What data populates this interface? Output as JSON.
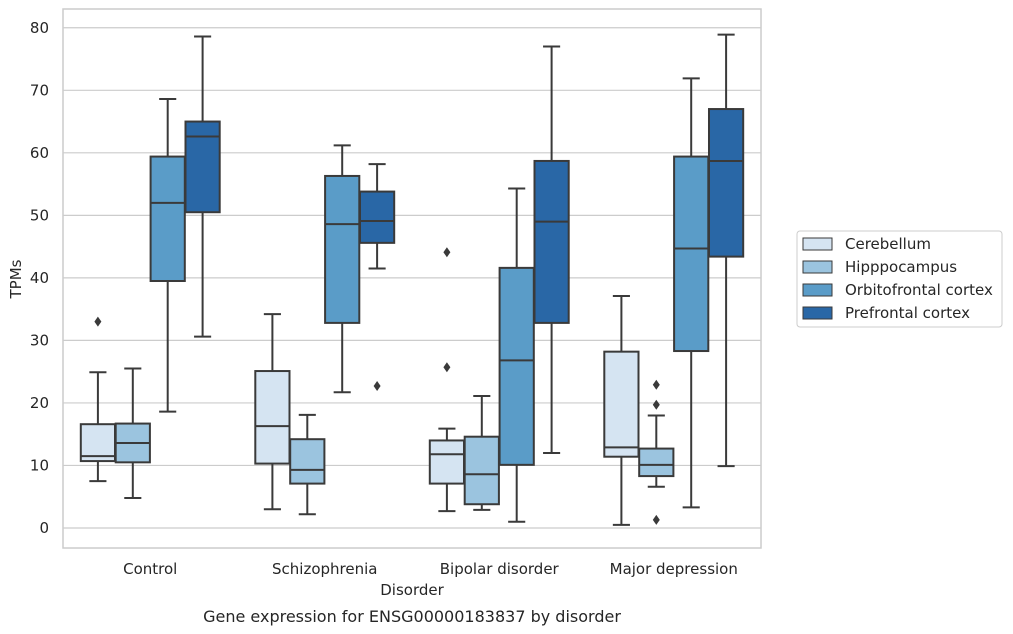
{
  "chart_data": {
    "type": "box",
    "caption": "Gene expression for ENSG00000183837 by disorder",
    "xlabel": "Disorder",
    "ylabel": "TPMs",
    "ylim": [
      -3.2,
      83
    ],
    "yticks": [
      0,
      10,
      20,
      30,
      40,
      50,
      60,
      70,
      80
    ],
    "grid": "horizontal",
    "legend_position": "right",
    "categories": [
      "Control",
      "Schizophrenia",
      "Bipolar disorder",
      "Major depression"
    ],
    "series": [
      {
        "name": "Cerebellum",
        "color": "#d5e4f2",
        "boxes": [
          {
            "whislo": 7.5,
            "q1": 10.7,
            "med": 11.5,
            "q3": 16.6,
            "whishi": 24.9,
            "fliers": [
              33.0
            ]
          },
          {
            "whislo": 3.0,
            "q1": 10.3,
            "med": 16.3,
            "q3": 25.1,
            "whishi": 34.2,
            "fliers": []
          },
          {
            "whislo": 2.7,
            "q1": 7.1,
            "med": 11.8,
            "q3": 14.0,
            "whishi": 15.9,
            "fliers": [
              25.7,
              44.1
            ]
          },
          {
            "whislo": 0.5,
            "q1": 11.4,
            "med": 12.9,
            "q3": 28.2,
            "whishi": 37.1,
            "fliers": []
          }
        ]
      },
      {
        "name": "Hipppocampus",
        "color": "#9bc4df",
        "boxes": [
          {
            "whislo": 4.8,
            "q1": 10.5,
            "med": 13.6,
            "q3": 16.7,
            "whishi": 25.5,
            "fliers": []
          },
          {
            "whislo": 2.2,
            "q1": 7.1,
            "med": 9.3,
            "q3": 14.2,
            "whishi": 18.1,
            "fliers": []
          },
          {
            "whislo": 2.9,
            "q1": 3.8,
            "med": 8.6,
            "q3": 14.6,
            "whishi": 21.1,
            "fliers": []
          },
          {
            "whislo": 6.6,
            "q1": 8.3,
            "med": 10.1,
            "q3": 12.7,
            "whishi": 18.0,
            "fliers": [
              1.3,
              19.7,
              22.9
            ]
          }
        ]
      },
      {
        "name": "Orbitofrontal cortex",
        "color": "#5a9cc8",
        "boxes": [
          {
            "whislo": 18.6,
            "q1": 39.5,
            "med": 52.0,
            "q3": 59.4,
            "whishi": 68.6,
            "fliers": []
          },
          {
            "whislo": 21.7,
            "q1": 32.8,
            "med": 48.6,
            "q3": 56.3,
            "whishi": 61.2,
            "fliers": []
          },
          {
            "whislo": 1.0,
            "q1": 10.1,
            "med": 26.8,
            "q3": 41.6,
            "whishi": 54.3,
            "fliers": []
          },
          {
            "whislo": 3.3,
            "q1": 28.3,
            "med": 44.7,
            "q3": 59.4,
            "whishi": 71.9,
            "fliers": []
          }
        ]
      },
      {
        "name": "Prefrontal cortex",
        "color": "#2967a6",
        "boxes": [
          {
            "whislo": 30.6,
            "q1": 50.5,
            "med": 62.6,
            "q3": 65.0,
            "whishi": 78.6,
            "fliers": []
          },
          {
            "whislo": 41.5,
            "q1": 45.6,
            "med": 49.1,
            "q3": 53.8,
            "whishi": 58.2,
            "fliers": [
              22.7
            ]
          },
          {
            "whislo": 12.0,
            "q1": 32.8,
            "med": 49.0,
            "q3": 58.7,
            "whishi": 77.0,
            "fliers": []
          },
          {
            "whislo": 9.9,
            "q1": 43.4,
            "med": 58.7,
            "q3": 67.0,
            "whishi": 78.9,
            "fliers": []
          }
        ]
      }
    ]
  }
}
